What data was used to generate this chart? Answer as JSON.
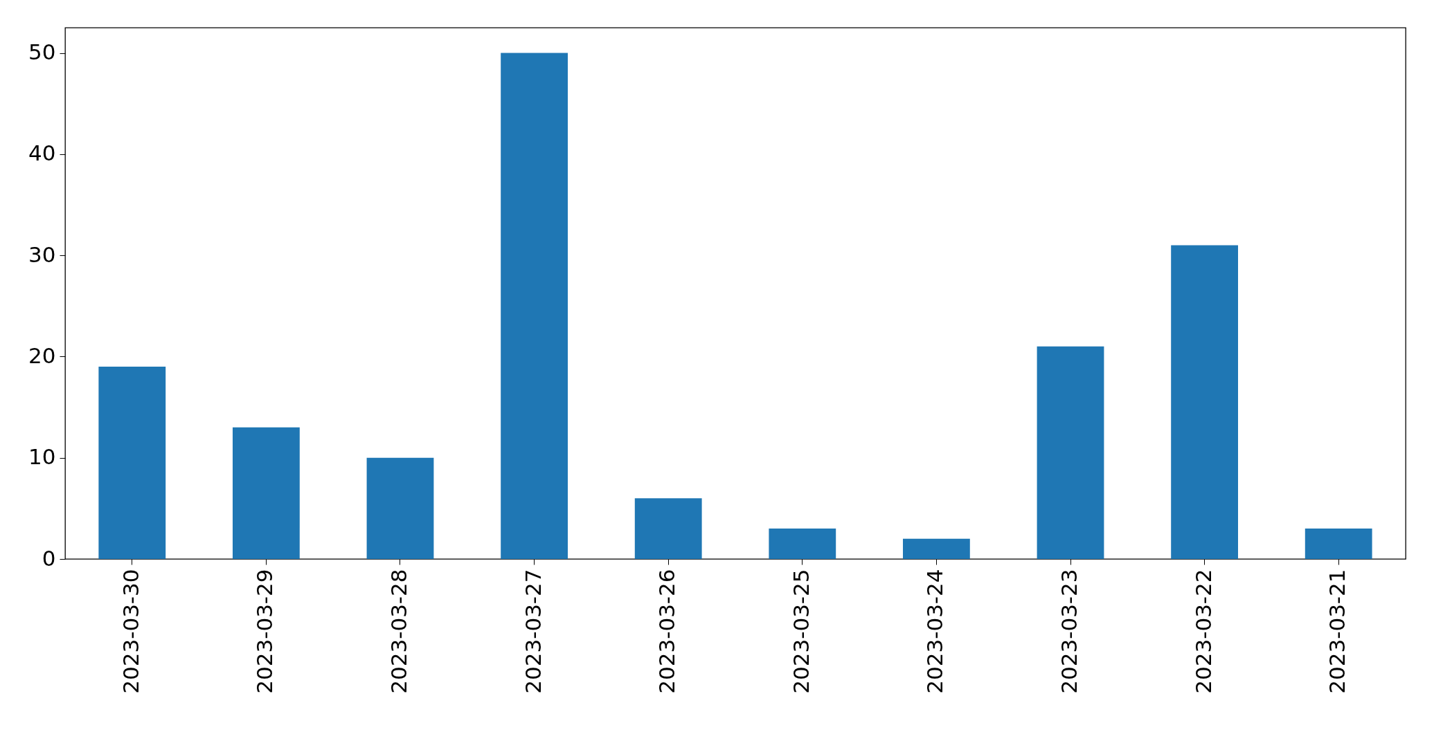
{
  "chart_data": {
    "type": "bar",
    "categories": [
      "2023-03-30",
      "2023-03-29",
      "2023-03-28",
      "2023-03-27",
      "2023-03-26",
      "2023-03-25",
      "2023-03-24",
      "2023-03-23",
      "2023-03-22",
      "2023-03-21"
    ],
    "values": [
      19,
      13,
      10,
      50,
      6,
      3,
      2,
      21,
      31,
      3
    ],
    "color": "#1f77b4",
    "ylim": [
      0,
      52.5
    ],
    "yticks": [
      0,
      10,
      20,
      30,
      40,
      50
    ],
    "grid": false
  }
}
